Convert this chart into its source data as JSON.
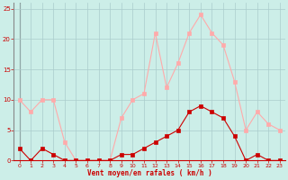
{
  "x": [
    0,
    1,
    2,
    3,
    4,
    5,
    6,
    7,
    8,
    9,
    10,
    11,
    12,
    13,
    14,
    15,
    16,
    17,
    18,
    19,
    20,
    21,
    22,
    23
  ],
  "wind_avg": [
    2,
    0,
    2,
    1,
    0,
    0,
    0,
    0,
    0,
    1,
    1,
    2,
    3,
    4,
    5,
    8,
    9,
    8,
    7,
    4,
    0,
    1,
    0,
    0
  ],
  "wind_gust": [
    10,
    8,
    10,
    10,
    3,
    0,
    0,
    0,
    0,
    7,
    10,
    11,
    21,
    12,
    16,
    21,
    24,
    21,
    19,
    13,
    5,
    8,
    6,
    5
  ],
  "avg_color": "#cc0000",
  "gust_color": "#ffaaaa",
  "bg_color": "#cceee8",
  "grid_color": "#aacccc",
  "xlabel": "Vent moyen/en rafales ( km/h )",
  "ylim": [
    0,
    26
  ],
  "xlim": [
    -0.5,
    23.5
  ],
  "yticks": [
    0,
    5,
    10,
    15,
    20,
    25
  ],
  "xticks": [
    0,
    1,
    2,
    3,
    4,
    5,
    6,
    7,
    8,
    9,
    10,
    11,
    12,
    13,
    14,
    15,
    16,
    17,
    18,
    19,
    20,
    21,
    22,
    23
  ]
}
